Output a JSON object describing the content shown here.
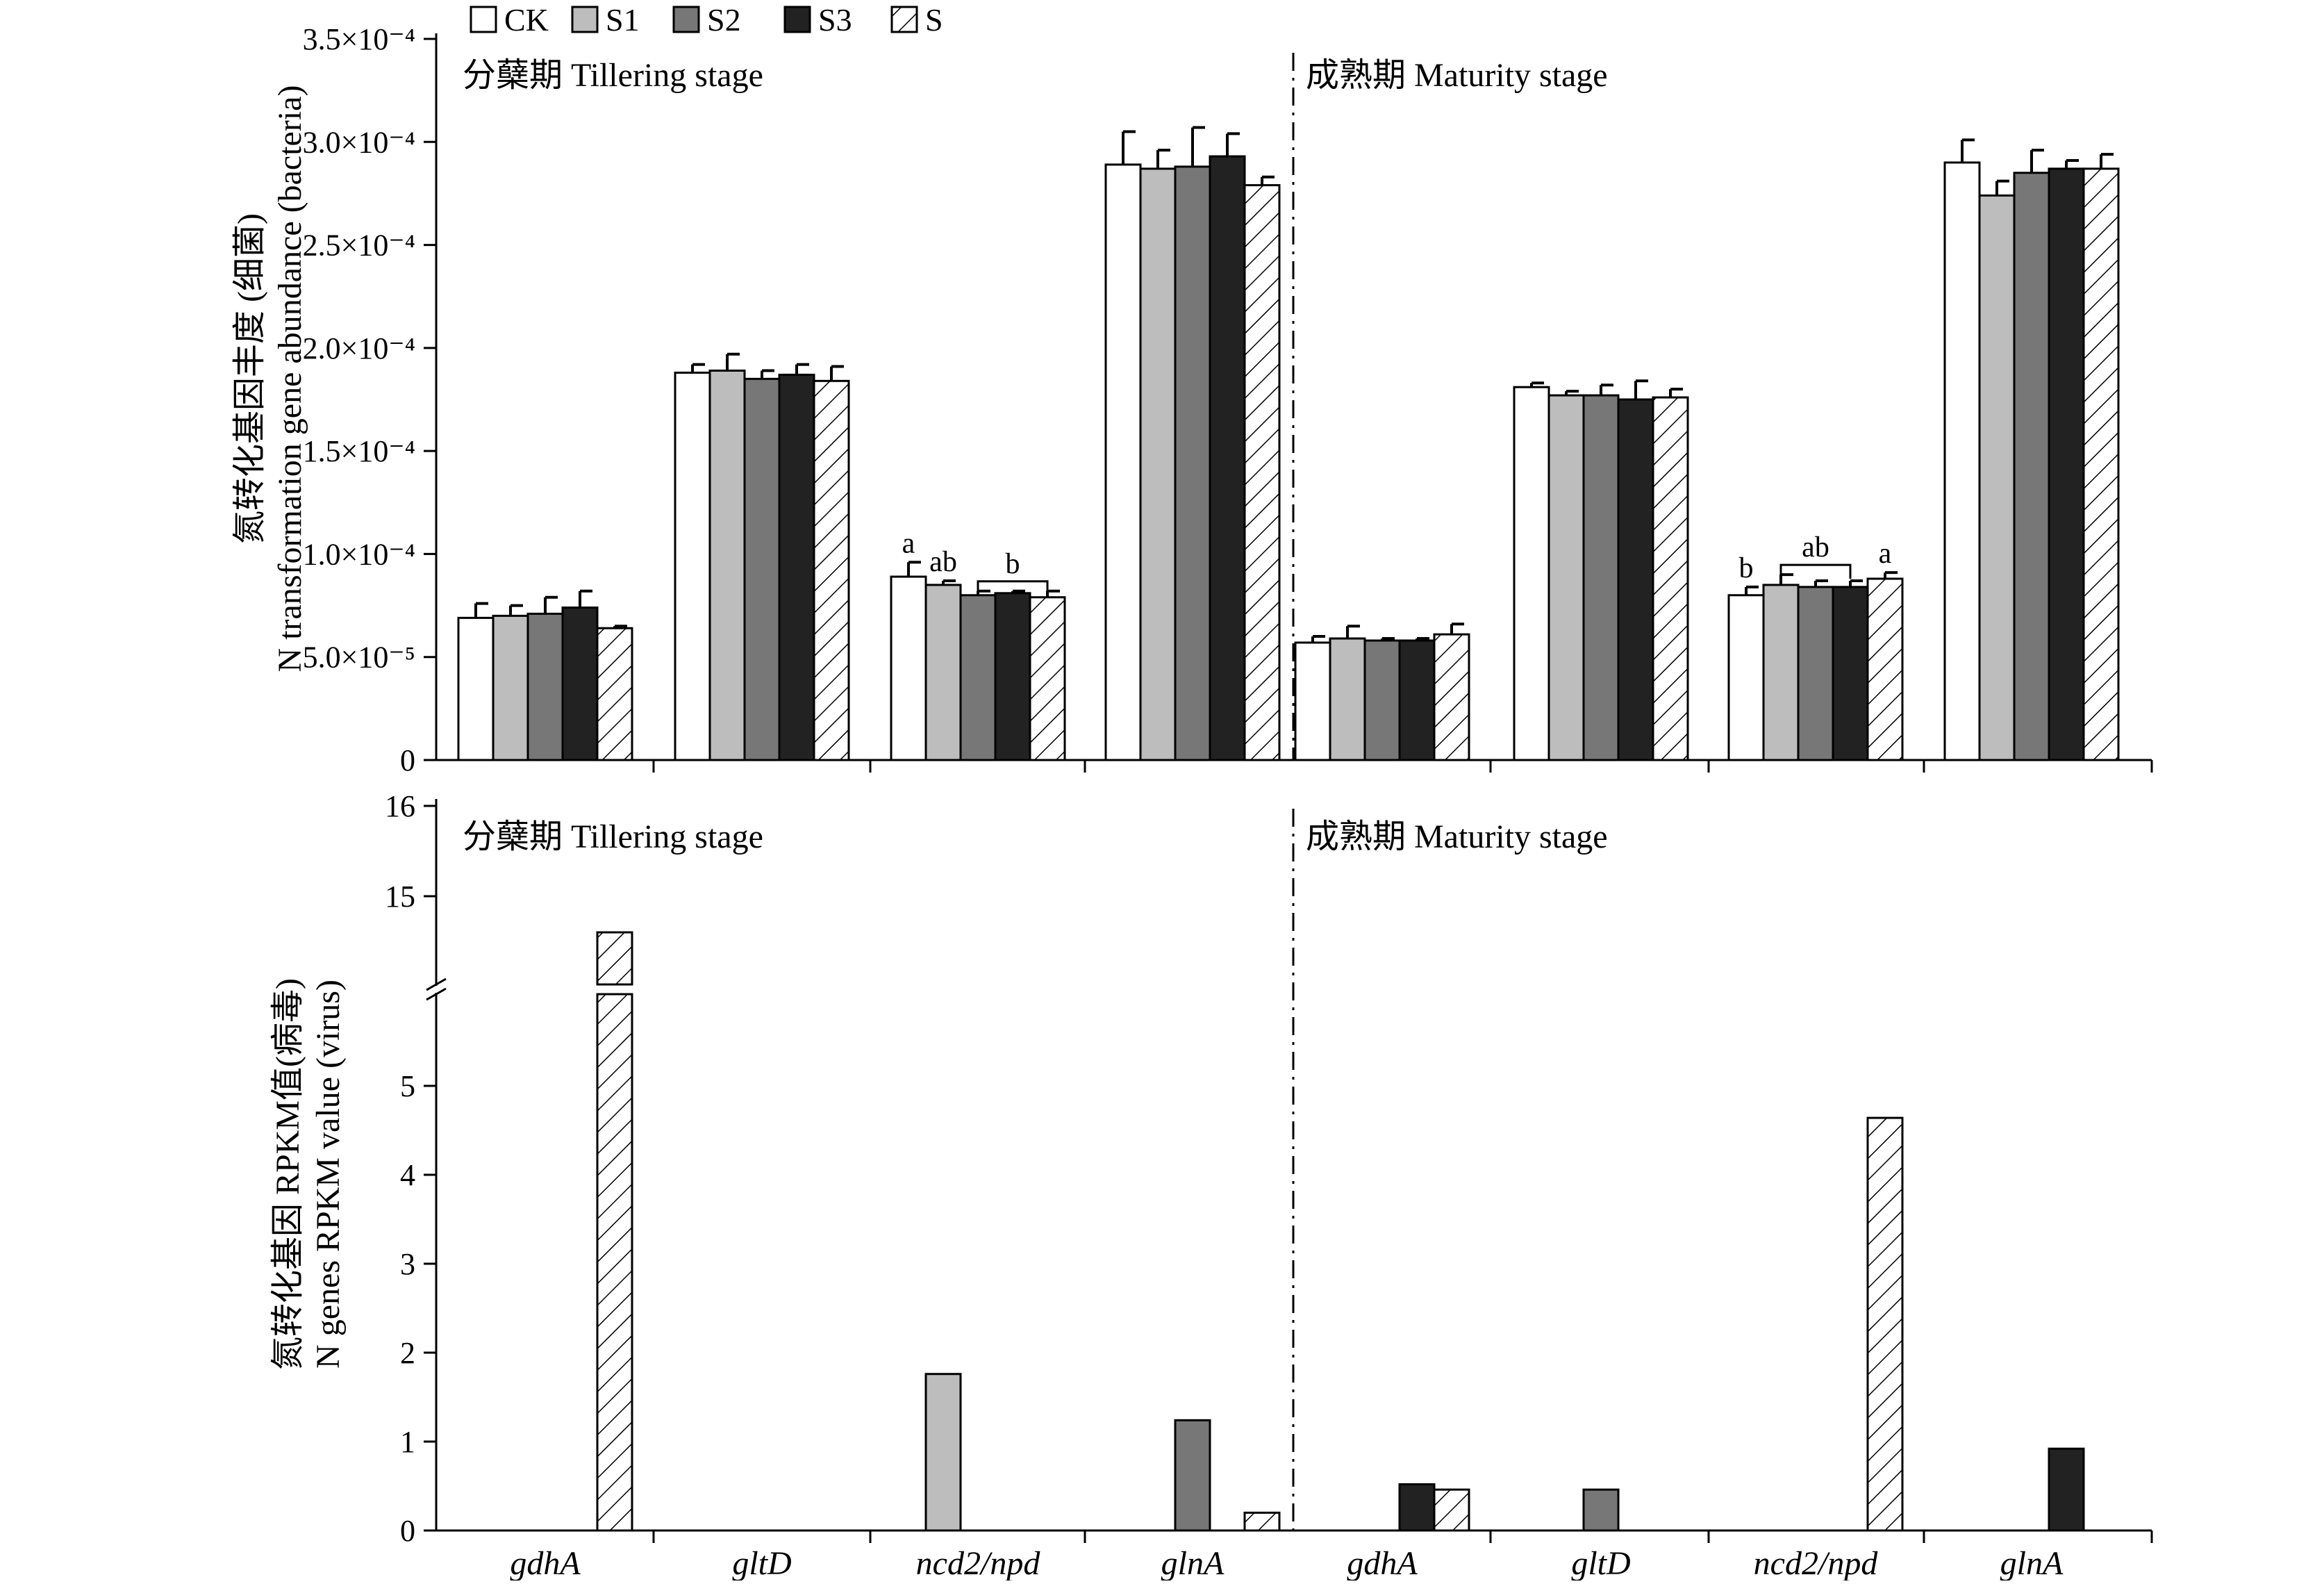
{
  "legend": [
    {
      "name": "CK",
      "fill": "#ffffff",
      "hatch": false
    },
    {
      "name": "S1",
      "fill": "#bdbdbd",
      "hatch": false
    },
    {
      "name": "S2",
      "fill": "#777777",
      "hatch": false
    },
    {
      "name": "S3",
      "fill": "#222222",
      "hatch": false
    },
    {
      "name": "S",
      "fill": "#ffffff",
      "hatch": true
    }
  ],
  "chart_data": [
    {
      "type": "bar",
      "ylabel_cn": "氮转化基因丰度 (细菌)",
      "ylabel": "N transformation gene abundance (bacteria)",
      "ylim": [
        0,
        0.00035
      ],
      "yticks": [
        "0",
        "5.0×10⁻⁵",
        "1.0×10⁻⁴",
        "1.5×10⁻⁴",
        "2.0×10⁻⁴",
        "2.5×10⁻⁴",
        "3.0×10⁻⁴",
        "3.5×10⁻⁴"
      ],
      "ytick_values": [
        0,
        5e-05,
        0.0001,
        0.00015,
        0.0002,
        0.00025,
        0.0003,
        0.00035
      ],
      "stage_labels": [
        "分蘖期 Tillering stage",
        "成熟期 Maturity stage"
      ],
      "groups": [
        {
          "stage": "Tillering",
          "gene": "gdhA",
          "values": [
            6.9e-05,
            7e-05,
            7.1e-05,
            7.4e-05,
            6.4e-05
          ],
          "errors": [
            7e-06,
            5e-06,
            8e-06,
            8e-06,
            1e-06
          ],
          "letters": []
        },
        {
          "stage": "Tillering",
          "gene": "gltD",
          "values": [
            0.000188,
            0.000189,
            0.000185,
            0.000187,
            0.000184
          ],
          "errors": [
            4e-06,
            8e-06,
            4e-06,
            5e-06,
            7e-06
          ],
          "letters": []
        },
        {
          "stage": "Tillering",
          "gene": "ncd2/npd",
          "values": [
            8.9e-05,
            8.5e-05,
            8e-05,
            8.1e-05,
            7.9e-05
          ],
          "errors": [
            7e-06,
            2e-06,
            2e-06,
            1e-06,
            3e-06
          ],
          "letters": [
            {
              "series": 0,
              "text": "a"
            },
            {
              "series": 1,
              "text": "ab"
            },
            {
              "series": [
                2,
                4
              ],
              "text": "b"
            }
          ]
        },
        {
          "stage": "Tillering",
          "gene": "glnA",
          "values": [
            0.000289,
            0.000287,
            0.000288,
            0.000293,
            0.000279
          ],
          "errors": [
            1.6e-05,
            9e-06,
            1.9e-05,
            1.1e-05,
            4e-06
          ],
          "letters": []
        },
        {
          "stage": "Maturity",
          "gene": "gdhA",
          "values": [
            5.7e-05,
            5.9e-05,
            5.8e-05,
            5.8e-05,
            6.1e-05
          ],
          "errors": [
            3e-06,
            6e-06,
            1e-06,
            1e-06,
            5e-06
          ],
          "letters": []
        },
        {
          "stage": "Maturity",
          "gene": "gltD",
          "values": [
            0.000181,
            0.000177,
            0.000177,
            0.000175,
            0.000176
          ],
          "errors": [
            2e-06,
            2e-06,
            5e-06,
            9e-06,
            4e-06
          ],
          "letters": []
        },
        {
          "stage": "Maturity",
          "gene": "ncd2/npd",
          "values": [
            8e-05,
            8.5e-05,
            8.4e-05,
            8.4e-05,
            8.8e-05
          ],
          "errors": [
            4e-06,
            5e-06,
            3e-06,
            3e-06,
            3e-06
          ],
          "letters": [
            {
              "series": 0,
              "text": "b"
            },
            {
              "series": [
                1,
                3
              ],
              "text": "ab"
            },
            {
              "series": 4,
              "text": "a"
            }
          ]
        },
        {
          "stage": "Maturity",
          "gene": "glnA",
          "values": [
            0.00029,
            0.000274,
            0.000285,
            0.000287,
            0.000287
          ],
          "errors": [
            1.1e-05,
            7e-06,
            1.1e-05,
            4e-06,
            7e-06
          ],
          "letters": []
        }
      ]
    },
    {
      "type": "bar",
      "ylabel_cn": "氮转化基因 RPKM值(病毒)",
      "ylabel": "N genes RPKM value (virus)",
      "ylim": [
        0,
        16
      ],
      "axis_break": [
        5.8,
        14.2
      ],
      "yticks": [
        "0",
        "1",
        "2",
        "3",
        "4",
        "5",
        "15",
        "16"
      ],
      "ytick_values": [
        0,
        1,
        2,
        3,
        4,
        5,
        15,
        16
      ],
      "stage_labels": [
        "分蘖期 Tillering stage",
        "成熟期 Maturity stage"
      ],
      "categories": [
        "gdhA",
        "gltD",
        "ncd2/npd",
        "glnA",
        "gdhA",
        "gltD",
        "ncd2/npd",
        "glnA"
      ],
      "groups": [
        {
          "stage": "Tillering",
          "gene": "gdhA",
          "values": [
            0,
            0,
            0,
            0,
            14.6
          ]
        },
        {
          "stage": "Tillering",
          "gene": "gltD",
          "values": [
            0,
            0,
            0,
            0,
            0
          ]
        },
        {
          "stage": "Tillering",
          "gene": "ncd2/npd",
          "values": [
            0,
            1.76,
            0,
            0,
            0
          ]
        },
        {
          "stage": "Tillering",
          "gene": "glnA",
          "values": [
            0,
            0,
            1.24,
            0,
            0.2
          ]
        },
        {
          "stage": "Maturity",
          "gene": "gdhA",
          "values": [
            0,
            0,
            0,
            0.52,
            0.46
          ]
        },
        {
          "stage": "Maturity",
          "gene": "gltD",
          "values": [
            0,
            0,
            0.46,
            0,
            0
          ]
        },
        {
          "stage": "Maturity",
          "gene": "ncd2/npd",
          "values": [
            0,
            0,
            0,
            0,
            4.64
          ]
        },
        {
          "stage": "Maturity",
          "gene": "glnA",
          "values": [
            0,
            0,
            0,
            0.92,
            0
          ]
        }
      ]
    }
  ]
}
